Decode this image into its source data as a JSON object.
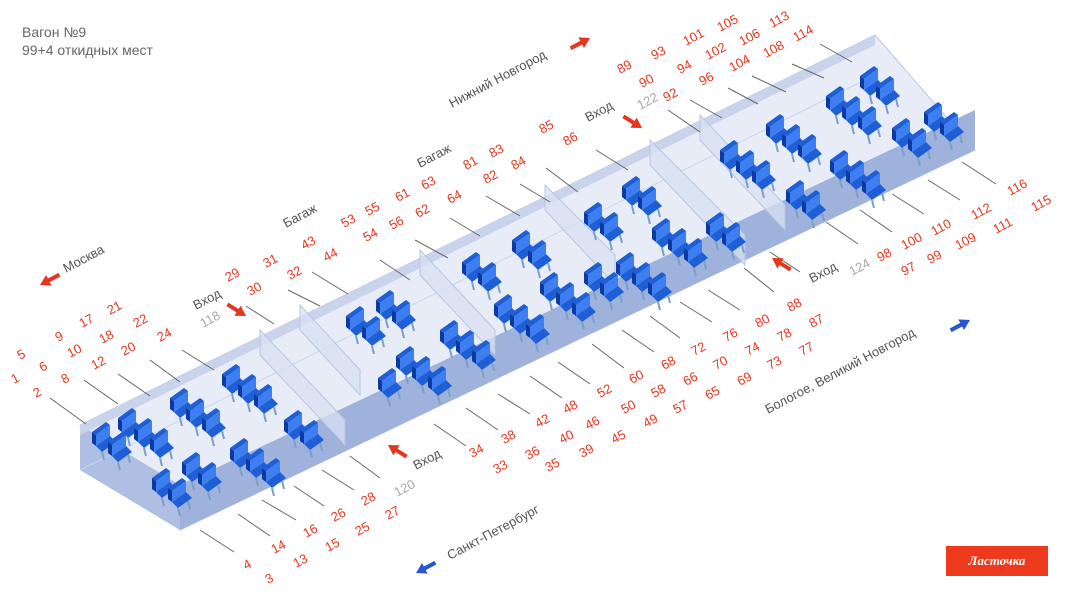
{
  "header": {
    "title": "Вагон №9",
    "subtitle": "99+4 откидных мест"
  },
  "brand": {
    "label": "Ласточка",
    "color": "#ee3a1c"
  },
  "colors": {
    "seat": "#1f5fd6",
    "seat_dark": "#0c3aa0",
    "number": "#e8361e",
    "arrow_red": "#e8361e",
    "arrow_blue": "#2a55d0",
    "car": "#c9d4ec"
  },
  "directions": {
    "moscow": "Москва",
    "nizhny": "Нижний Новгород",
    "spb": "Санкт-Петербург",
    "bologoe": "Бологое, Великий Новгород"
  },
  "labels": {
    "entry_back_left": "Вход",
    "entry_back_right": "Вход",
    "entry_front_left": "Вход",
    "entry_front_right": "Вход",
    "baggage_1": "Багаж",
    "baggage_2": "Багаж"
  },
  "fold_seats": {
    "s118": "118",
    "s120": "120",
    "s122": "122",
    "s124": "124"
  },
  "seats": {
    "s1": "1",
    "s2": "2",
    "s3": "3",
    "s4": "4",
    "s5": "5",
    "s6": "6",
    "s8": "8",
    "s9": "9",
    "s10": "10",
    "s12": "12",
    "s13": "13",
    "s14": "14",
    "s15": "15",
    "s16": "16",
    "s17": "17",
    "s18": "18",
    "s20": "20",
    "s21": "21",
    "s22": "22",
    "s24": "24",
    "s25": "25",
    "s26": "26",
    "s27": "27",
    "s28": "28",
    "s29": "29",
    "s30": "30",
    "s31": "31",
    "s32": "32",
    "s33": "33",
    "s34": "34",
    "s35": "35",
    "s36": "36",
    "s38": "38",
    "s39": "39",
    "s40": "40",
    "s42": "42",
    "s43": "43",
    "s44": "44",
    "s45": "45",
    "s46": "46",
    "s48": "48",
    "s49": "49",
    "s50": "50",
    "s52": "52",
    "s53": "53",
    "s54": "54",
    "s55": "55",
    "s56": "56",
    "s57": "57",
    "s58": "58",
    "s60": "60",
    "s61": "61",
    "s62": "62",
    "s63": "63",
    "s64": "64",
    "s65": "65",
    "s66": "66",
    "s68": "68",
    "s69": "69",
    "s70": "70",
    "s72": "72",
    "s73": "73",
    "s74": "74",
    "s76": "76",
    "s77": "77",
    "s78": "78",
    "s80": "80",
    "s81": "81",
    "s82": "82",
    "s83": "83",
    "s84": "84",
    "s85": "85",
    "s86": "86",
    "s87": "87",
    "s88": "88",
    "s89": "89",
    "s90": "90",
    "s92": "92",
    "s93": "93",
    "s94": "94",
    "s96": "96",
    "s97": "97",
    "s98": "98",
    "s99": "99",
    "s100": "100",
    "s101": "101",
    "s102": "102",
    "s104": "104",
    "s105": "105",
    "s106": "106",
    "s108": "108",
    "s109": "109",
    "s110": "110",
    "s111": "111",
    "s112": "112",
    "s113": "113",
    "s114": "114",
    "s115": "115",
    "s116": "116"
  }
}
